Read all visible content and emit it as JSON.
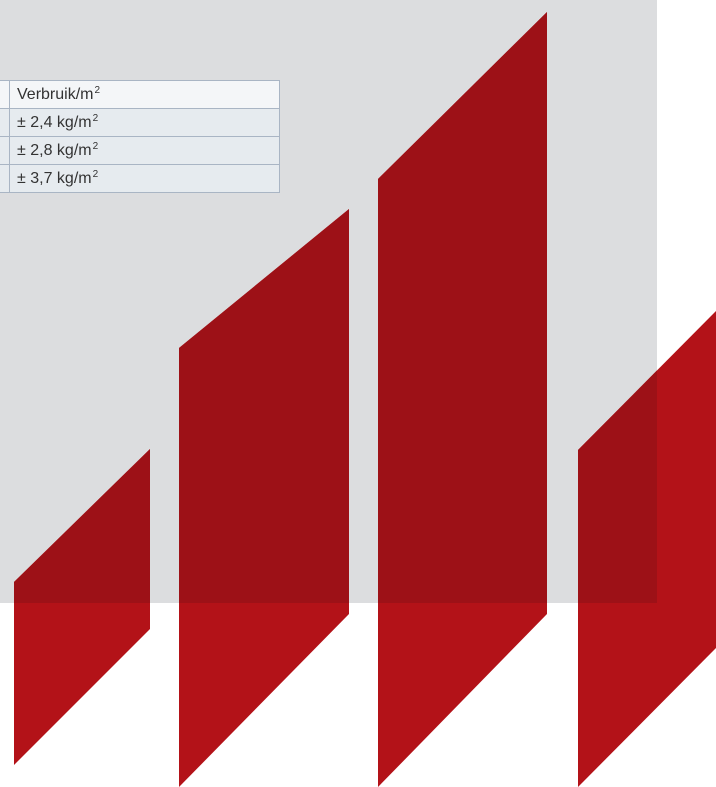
{
  "colors": {
    "panel_gray": "#dcdddf",
    "bar_dark_red": "#9d1117",
    "bar_red": "#b31218",
    "table_cell": "#e6ebef",
    "table_border": "#a9b5c4"
  },
  "table": {
    "header": {
      "label": "Verbruik/m",
      "exponent": "2"
    },
    "rows": [
      {
        "value": "± 2,4 kg/m",
        "exponent": "2"
      },
      {
        "value": "± 2,8 kg/m",
        "exponent": "2"
      },
      {
        "value": "± 3,7 kg/m",
        "exponent": "2"
      }
    ]
  }
}
